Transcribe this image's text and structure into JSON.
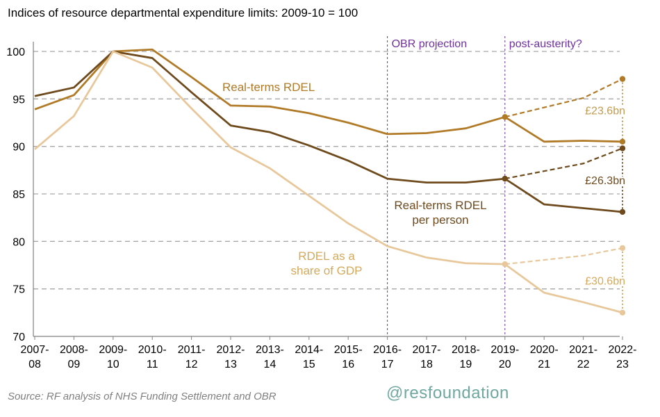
{
  "chart_data": {
    "type": "line",
    "title": "Indices of resource departmental expenditure limits: 2009-10 = 100",
    "x": [
      [
        "2007-",
        "08"
      ],
      [
        "2008-",
        "09"
      ],
      [
        "2009-",
        "10"
      ],
      [
        "2010-",
        "11"
      ],
      [
        "2011-",
        "12"
      ],
      [
        "2012-",
        "13"
      ],
      [
        "2013-",
        "14"
      ],
      [
        "2014-",
        "15"
      ],
      [
        "2015-",
        "16"
      ],
      [
        "2016-",
        "17"
      ],
      [
        "2017-",
        "18"
      ],
      [
        "2018-",
        "19"
      ],
      [
        "2019-",
        "20"
      ],
      [
        "2020-",
        "21"
      ],
      [
        "2021-",
        "22"
      ],
      [
        "2022-",
        "23"
      ]
    ],
    "ylim": [
      70,
      100
    ],
    "yticks": [
      70,
      75,
      80,
      85,
      90,
      95,
      100
    ],
    "grid": "horizontal dashed",
    "series": [
      {
        "name": "Real-terms RDEL",
        "color": "#b07a27",
        "values": [
          93.9,
          95.4,
          100,
          100.2,
          97.3,
          94.3,
          94.2,
          93.5,
          92.5,
          91.3,
          91.4,
          91.9,
          93.1,
          90.5,
          90.6,
          90.5
        ],
        "post_austerity": [
          93.1,
          95.1,
          97.1
        ]
      },
      {
        "name": "Real-terms RDEL per person",
        "color": "#6e4a1c",
        "values": [
          95.3,
          96.2,
          100,
          99.3,
          95.7,
          92.2,
          91.5,
          90.1,
          88.5,
          86.6,
          86.2,
          86.2,
          86.6,
          83.9,
          83.5,
          83.1
        ],
        "post_austerity": [
          86.6,
          88.2,
          89.8
        ]
      },
      {
        "name": "RDEL as a share of GDP",
        "color": "#e8c89b",
        "values": [
          89.7,
          93.2,
          100,
          98.3,
          94.0,
          89.9,
          87.7,
          84.8,
          81.9,
          79.5,
          78.3,
          77.7,
          77.6,
          74.6,
          73.6,
          72.5
        ],
        "post_austerity": [
          77.6,
          78.5,
          79.3
        ]
      }
    ],
    "gaps": [
      {
        "label": "£23.6bn",
        "series": 0,
        "color": "#c49a4e",
        "from": 90.5,
        "to": 97.1
      },
      {
        "label": "£26.3bn",
        "series": 1,
        "color": "#6e4a1c",
        "from": 83.1,
        "to": 89.8
      },
      {
        "label": "£30.6bn",
        "series": 2,
        "color": "#d6a95a",
        "from": 72.5,
        "to": 79.3
      }
    ],
    "line_labels": [
      {
        "lines": [
          "Real-terms RDEL"
        ],
        "color": "#b07a27"
      },
      {
        "lines": [
          "Real-terms RDEL",
          "per person"
        ],
        "color": "#6e4a1c"
      },
      {
        "lines": [
          "RDEL as a",
          "share of GDP"
        ],
        "color": "#d6a95a"
      }
    ],
    "annotations": [
      {
        "text": "OBR projection",
        "color": "#7030a0",
        "at_x_index": 9
      },
      {
        "text": "post-austerity?",
        "color": "#7030a0",
        "at_x_index": 12
      }
    ]
  },
  "footer": {
    "source": "Source: RF analysis of NHS Funding Settlement and OBR",
    "handle": "@resfoundation"
  }
}
